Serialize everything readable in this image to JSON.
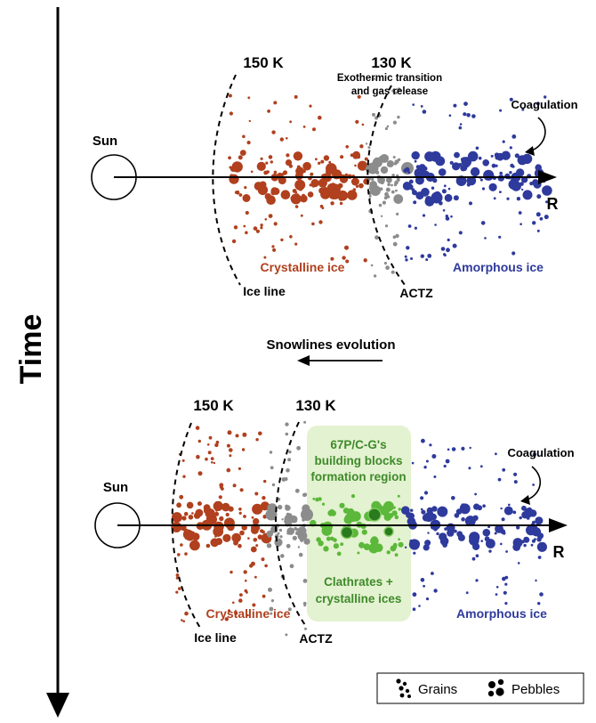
{
  "time_label": "Time",
  "evolution_label": "Snowlines evolution",
  "panels": [
    {
      "temp_ice_line": "150 K",
      "temp_actz": "130 K",
      "transition_label_line1": "Exothermic transition",
      "transition_label_line2": "and gas release",
      "coagulation": "Coagulation",
      "sun": "Sun",
      "r_axis": "R",
      "crystalline": "Crystalline ice",
      "amorphous": "Amorphous ice",
      "ice_line": "Ice line",
      "actz": "ACTZ"
    },
    {
      "temp_ice_line": "150 K",
      "temp_actz": "130 K",
      "formation_line1": "67P/C-G's",
      "formation_line2": "building blocks",
      "formation_line3": "formation region",
      "clathrates_line1": "Clathrates +",
      "clathrates_line2": "crystalline ices",
      "coagulation": "Coagulation",
      "sun": "Sun",
      "r_axis": "R",
      "crystalline": "Crystalline ice",
      "amorphous": "Amorphous ice",
      "ice_line": "Ice line",
      "actz": "ACTZ"
    }
  ],
  "legend": {
    "grains": "Grains",
    "pebbles": "Pebbles"
  },
  "colors": {
    "crystalline": "#b0401e",
    "actz_grey": "#8c8c8c",
    "amorphous": "#2e3a9c",
    "formation_fill": "#e3f2d0",
    "formation_text": "#3f8a2a",
    "formation_particle": "#5bb83a",
    "formation_dark": "#2a7a1e"
  }
}
